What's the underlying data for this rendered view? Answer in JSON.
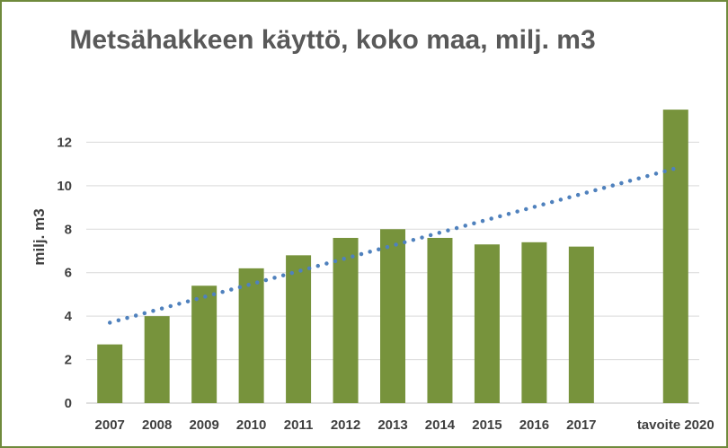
{
  "chart_data": {
    "type": "bar",
    "title": "Metsähakkeen käyttö, koko maa, milj. m3",
    "xlabel": "",
    "ylabel": "milj. m3",
    "categories": [
      "2007",
      "2008",
      "2009",
      "2010",
      "2011",
      "2012",
      "2013",
      "2014",
      "2015",
      "2016",
      "2017",
      "",
      "tavoite 2020"
    ],
    "series": [
      {
        "values": [
          2.7,
          4.0,
          5.4,
          6.2,
          6.8,
          7.6,
          8.0,
          7.6,
          7.3,
          7.4,
          7.2,
          null,
          13.5
        ]
      }
    ],
    "trendline": {
      "style": "dotted",
      "from_category": "2007",
      "to_category": "tavoite 2020",
      "start_value": 3.7,
      "end_value": 10.8
    },
    "ylim": [
      0,
      14
    ],
    "yticks": [
      0,
      2,
      4,
      6,
      8,
      10,
      12
    ],
    "grid": true,
    "legend": "none",
    "colors": {
      "bar": "#77933c",
      "trend": "#4f81bd",
      "grid": "#d9d9d9",
      "frame": "#6f8a3c"
    }
  }
}
